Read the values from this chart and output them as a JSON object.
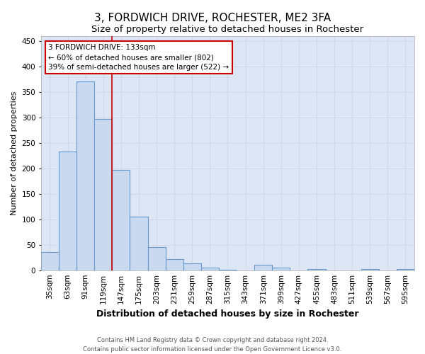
{
  "title_line1": "3, FORDWICH DRIVE, ROCHESTER, ME2 3FA",
  "title_line2": "Size of property relative to detached houses in Rochester",
  "xlabel": "Distribution of detached houses by size in Rochester",
  "ylabel": "Number of detached properties",
  "categories": [
    "35sqm",
    "63sqm",
    "91sqm",
    "119sqm",
    "147sqm",
    "175sqm",
    "203sqm",
    "231sqm",
    "259sqm",
    "287sqm",
    "315sqm",
    "343sqm",
    "371sqm",
    "399sqm",
    "427sqm",
    "455sqm",
    "483sqm",
    "511sqm",
    "539sqm",
    "567sqm",
    "595sqm"
  ],
  "values": [
    35,
    233,
    370,
    297,
    197,
    105,
    46,
    22,
    14,
    5,
    1,
    0,
    10,
    5,
    0,
    3,
    0,
    0,
    2,
    0,
    3
  ],
  "bar_color": "#c9d9f0",
  "bar_edge_color": "#6699cc",
  "red_line_x": 3.5,
  "annotation_text": "3 FORDWICH DRIVE: 133sqm\n← 60% of detached houses are smaller (802)\n39% of semi-detached houses are larger (522) →",
  "annotation_box_color": "white",
  "annotation_box_edge_color": "#cc0000",
  "ylim": [
    0,
    460
  ],
  "yticks": [
    0,
    50,
    100,
    150,
    200,
    250,
    300,
    350,
    400,
    450
  ],
  "grid_color": "#d0d8e8",
  "background_color": "#dce6f5",
  "footer_line1": "Contains HM Land Registry data © Crown copyright and database right 2024.",
  "footer_line2": "Contains public sector information licensed under the Open Government Licence v3.0.",
  "title_fontsize": 11,
  "subtitle_fontsize": 9.5,
  "xlabel_fontsize": 9,
  "ylabel_fontsize": 8,
  "tick_fontsize": 7.5,
  "annotation_fontsize": 7.5,
  "footer_fontsize": 6
}
